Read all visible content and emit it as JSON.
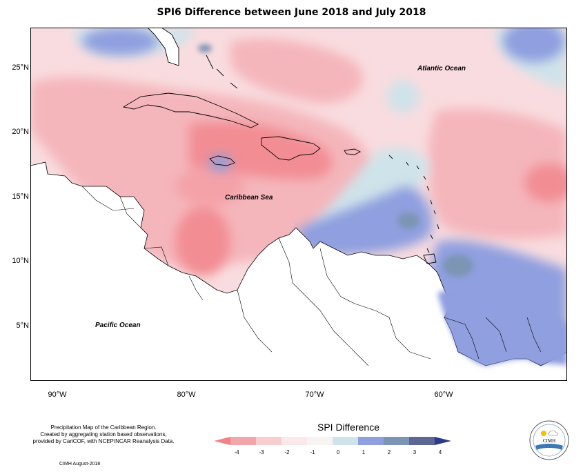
{
  "map": {
    "title": "SPI6 Difference between June 2018 and July 2018",
    "lat_labels": [
      "25°N",
      "20°N",
      "15°N",
      "10°N",
      "5°N"
    ],
    "lon_labels": [
      "90°W",
      "80°W",
      "70°W",
      "60°W"
    ],
    "ocean_labels": {
      "atlantic": "Atlantic Ocean",
      "caribbean": "Caribbean Sea",
      "pacific": "Pacific Ocean"
    },
    "legend": {
      "title": "SPI Difference",
      "ticks": [
        "-4",
        "-3",
        "-2",
        "-1",
        "0",
        "1",
        "2",
        "3",
        "4"
      ],
      "colors": [
        "#f47f86",
        "#f2a6ab",
        "#f7cdd0",
        "#fbe8ea",
        "#f8f4f4",
        "#cfe3ea",
        "#8f9fdf",
        "#7c95b4",
        "#5d6694",
        "#2a3a8c"
      ]
    },
    "credits": {
      "line1": "Precipitation Map of the Caribbean Region.",
      "line2": "Created by aggregating station based observations,",
      "line3": "provided by CariCOF, with NCEP/NCAR Reanalysis Data.",
      "footer": "CIMH August-2018"
    },
    "logo": {
      "text": "CIMH"
    }
  }
}
